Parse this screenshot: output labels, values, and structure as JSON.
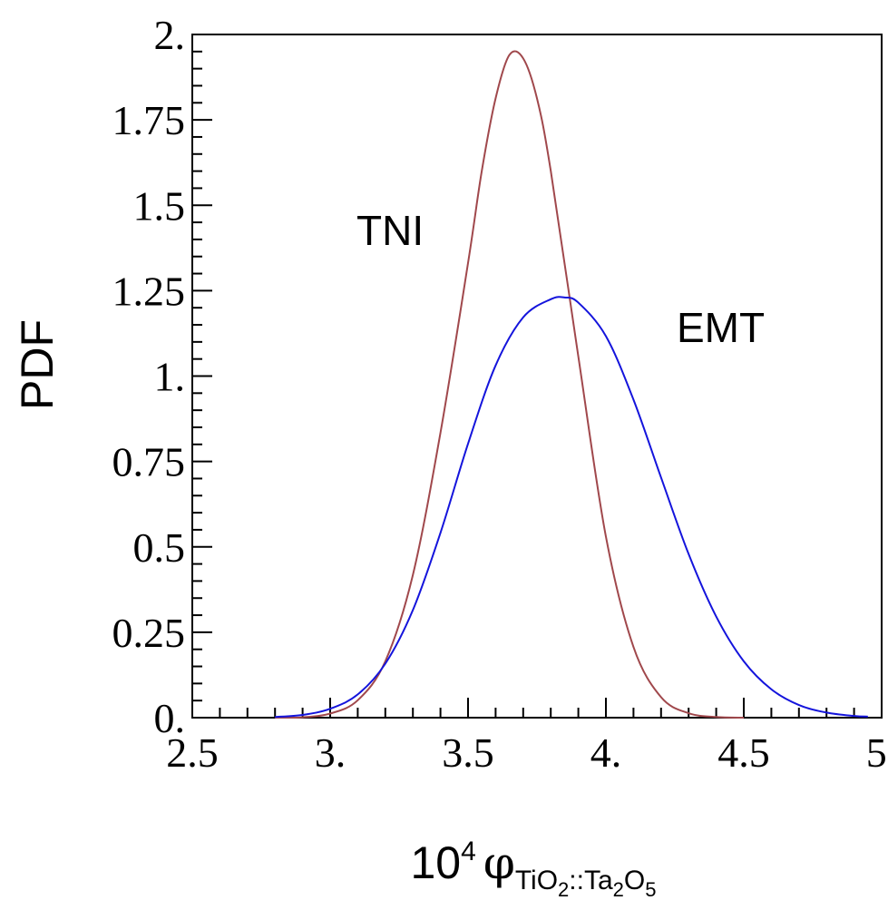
{
  "chart_data": {
    "type": "line",
    "xlabel": {
      "prefix": "10",
      "exponent": "4",
      "symbol": "φ",
      "subscript_parts": [
        {
          "text": "TiO",
          "sub": false
        },
        {
          "text": "2",
          "sub": true
        },
        {
          "text": "::Ta",
          "sub": false
        },
        {
          "text": "2",
          "sub": true
        },
        {
          "text": "O",
          "sub": false
        },
        {
          "text": "5",
          "sub": true
        }
      ]
    },
    "ylabel": "PDF",
    "xlim": [
      2.5,
      5.0
    ],
    "ylim": [
      0,
      2.0
    ],
    "xticks": [
      {
        "value": 2.5,
        "label": "2.5"
      },
      {
        "value": 3.0,
        "label": "3."
      },
      {
        "value": 3.5,
        "label": "3.5"
      },
      {
        "value": 4.0,
        "label": "4."
      },
      {
        "value": 4.5,
        "label": "4.5"
      },
      {
        "value": 5.0,
        "label": "5."
      }
    ],
    "yticks": [
      {
        "value": 0,
        "label": "0."
      },
      {
        "value": 0.25,
        "label": "0.25"
      },
      {
        "value": 0.5,
        "label": "0.5"
      },
      {
        "value": 0.75,
        "label": "0.75"
      },
      {
        "value": 1.0,
        "label": "1."
      },
      {
        "value": 1.25,
        "label": "1.25"
      },
      {
        "value": 1.5,
        "label": "1.5"
      },
      {
        "value": 1.75,
        "label": "1.75"
      },
      {
        "value": 2.0,
        "label": "2."
      }
    ],
    "series": [
      {
        "name": "TNI",
        "color": "#a0484c",
        "x": [
          2.8,
          2.9,
          3.0,
          3.1,
          3.2,
          3.3,
          3.4,
          3.5,
          3.55,
          3.6,
          3.65,
          3.7,
          3.75,
          3.8,
          3.9,
          4.0,
          4.1,
          4.2,
          4.3,
          4.4,
          4.5
        ],
        "y": [
          0.0,
          0.001,
          0.012,
          0.051,
          0.165,
          0.418,
          0.834,
          1.331,
          1.601,
          1.813,
          1.94,
          1.93,
          1.813,
          1.601,
          1.057,
          0.53,
          0.207,
          0.06,
          0.013,
          0.002,
          0.0
        ]
      },
      {
        "name": "EMT",
        "color": "#1414dc",
        "x": [
          2.8,
          2.9,
          3.0,
          3.1,
          3.2,
          3.3,
          3.4,
          3.5,
          3.6,
          3.7,
          3.8,
          3.85,
          3.9,
          4.0,
          4.1,
          4.2,
          4.3,
          4.4,
          4.5,
          4.6,
          4.7,
          4.8,
          4.9,
          4.95
        ],
        "y": [
          0.002,
          0.008,
          0.026,
          0.068,
          0.158,
          0.315,
          0.541,
          0.802,
          1.031,
          1.172,
          1.225,
          1.23,
          1.215,
          1.117,
          0.931,
          0.703,
          0.479,
          0.296,
          0.165,
          0.083,
          0.037,
          0.015,
          0.005,
          0.003
        ]
      }
    ],
    "annotations": [
      "TNI",
      "EMT"
    ],
    "grid": false,
    "legend": "none"
  }
}
